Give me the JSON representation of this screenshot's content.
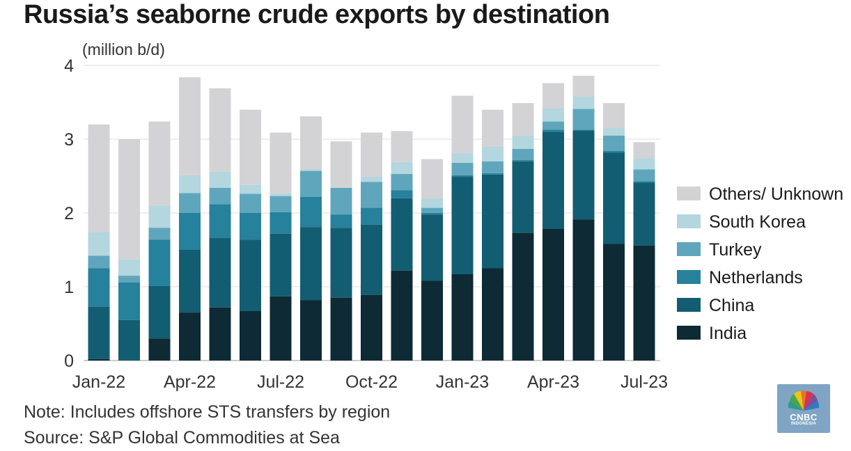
{
  "title": "Russia’s seaborne crude exports by destination",
  "unit_label": "(million b/d)",
  "note": "Note: Includes offshore STS transfers by region",
  "source": "Source: S&P Global Commodities at Sea",
  "logo": {
    "name": "CNBC",
    "sub": "INDONESIA",
    "icon": "peacock-icon"
  },
  "chart_data": {
    "type": "bar",
    "stacked": true,
    "title": "Russia’s seaborne crude exports by destination",
    "ylabel": "(million b/d)",
    "ylim": [
      0,
      4
    ],
    "yticks": [
      0,
      1,
      2,
      3,
      4
    ],
    "grid": true,
    "legend_position": "right",
    "x_tick_labels": [
      "Jan-22",
      "Apr-22",
      "Jul-22",
      "Oct-22",
      "Jan-23",
      "Apr-23",
      "Jul-23"
    ],
    "x_tick_indices": [
      0,
      3,
      6,
      9,
      12,
      15,
      18
    ],
    "categories": [
      "Jan-22",
      "Feb-22",
      "Mar-22",
      "Apr-22",
      "May-22",
      "Jun-22",
      "Jul-22",
      "Aug-22",
      "Sep-22",
      "Oct-22",
      "Nov-22",
      "Dec-22",
      "Jan-23",
      "Feb-23",
      "Mar-23",
      "Apr-23",
      "May-23",
      "Jun-23",
      "Jul-23"
    ],
    "series": [
      {
        "name": "India",
        "color": "#0d2a35",
        "values": [
          0.02,
          0,
          0.3,
          0.65,
          0.72,
          0.67,
          0.87,
          0.82,
          0.85,
          0.89,
          1.22,
          1.08,
          1.17,
          1.25,
          1.73,
          1.79,
          1.91,
          1.58,
          1.56
        ]
      },
      {
        "name": "China",
        "color": "#135d72",
        "values": [
          0.71,
          0.55,
          0.71,
          0.85,
          0.94,
          0.97,
          0.85,
          0.99,
          0.95,
          0.95,
          0.98,
          0.9,
          1.32,
          1.27,
          0.97,
          1.31,
          1.21,
          1.24,
          0.85
        ]
      },
      {
        "name": "Netherlands",
        "color": "#26819c",
        "values": [
          0.52,
          0.51,
          0.63,
          0.5,
          0.46,
          0.36,
          0.29,
          0.41,
          0.18,
          0.23,
          0.11,
          0.02,
          0.02,
          0.02,
          0.02,
          0.03,
          0.01,
          0.02,
          0.02
        ]
      },
      {
        "name": "Turkey",
        "color": "#5fa6bc",
        "values": [
          0.17,
          0.09,
          0.16,
          0.27,
          0.22,
          0.26,
          0.22,
          0.35,
          0.36,
          0.35,
          0.22,
          0.07,
          0.17,
          0.16,
          0.15,
          0.11,
          0.28,
          0.21,
          0.16
        ]
      },
      {
        "name": "South Korea",
        "color": "#b3d6df",
        "values": [
          0.32,
          0.22,
          0.3,
          0.24,
          0.22,
          0.12,
          0.03,
          0.02,
          0.0,
          0.07,
          0.16,
          0.13,
          0.13,
          0.2,
          0.18,
          0.18,
          0.17,
          0.1,
          0.15
        ]
      },
      {
        "name": "Others/ Unknown",
        "color": "#d3d3d5",
        "values": [
          1.46,
          1.63,
          1.14,
          1.33,
          1.13,
          1.02,
          0.83,
          0.72,
          0.63,
          0.6,
          0.42,
          0.53,
          0.78,
          0.5,
          0.44,
          0.34,
          0.28,
          0.34,
          0.22
        ]
      }
    ]
  }
}
